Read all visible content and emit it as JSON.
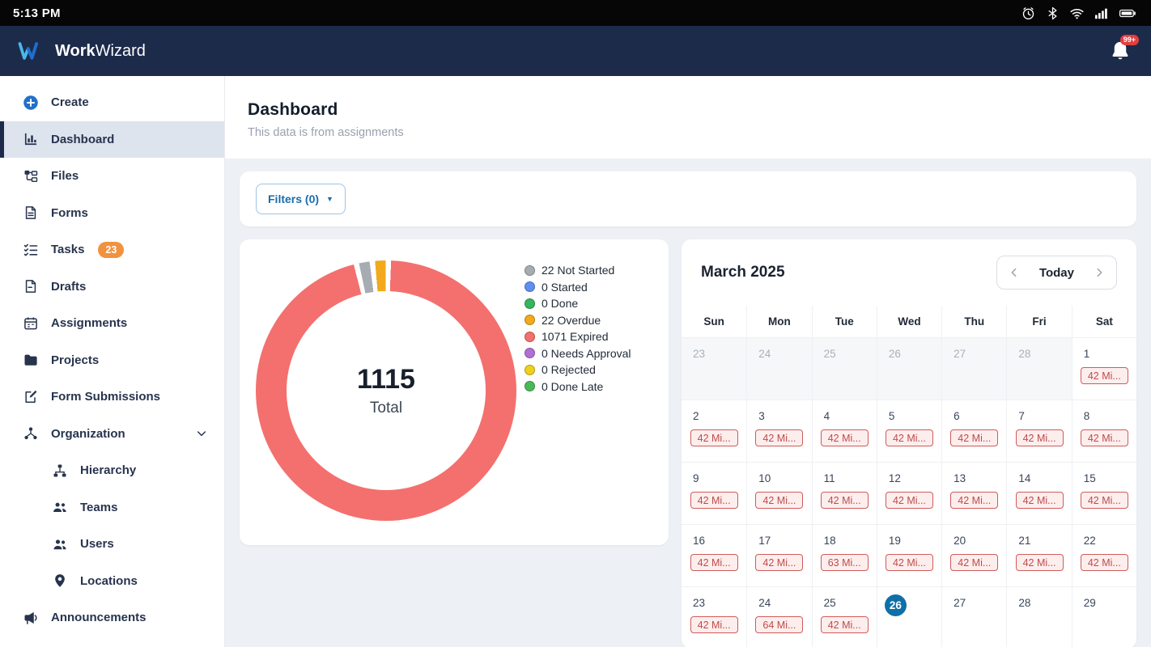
{
  "status_bar": {
    "time": "5:13 PM",
    "icons": [
      "alarm",
      "bluetooth",
      "wifi",
      "signal",
      "battery"
    ]
  },
  "header": {
    "brand_bold": "Work",
    "brand_light": "Wizard",
    "notification_badge": "99+"
  },
  "sidebar": {
    "items": [
      {
        "label": "Create",
        "icon": "plus-circle"
      },
      {
        "label": "Dashboard",
        "icon": "bar-chart",
        "active": true
      },
      {
        "label": "Files",
        "icon": "file-tree"
      },
      {
        "label": "Forms",
        "icon": "document"
      },
      {
        "label": "Tasks",
        "icon": "checklist",
        "badge": "23"
      },
      {
        "label": "Drafts",
        "icon": "draft"
      },
      {
        "label": "Assignments",
        "icon": "calendar"
      },
      {
        "label": "Projects",
        "icon": "folder"
      },
      {
        "label": "Form Submissions",
        "icon": "document-pen"
      },
      {
        "label": "Organization",
        "icon": "org-nodes",
        "expandable": true
      },
      {
        "label": "Hierarchy",
        "icon": "hierarchy",
        "indent": true
      },
      {
        "label": "Teams",
        "icon": "people-group",
        "indent": true
      },
      {
        "label": "Users",
        "icon": "people",
        "indent": true
      },
      {
        "label": "Locations",
        "icon": "map-pin",
        "indent": true
      },
      {
        "label": "Announcements",
        "icon": "megaphone"
      }
    ]
  },
  "main": {
    "title": "Dashboard",
    "subtitle": "This data is from assignments",
    "filters_label": "Filters (0)"
  },
  "chart_data": {
    "type": "pie",
    "title": "Assignment status donut",
    "total": 1115,
    "center_value": "1115",
    "center_label": "Total",
    "legend_position": "right",
    "segments": [
      {
        "label": "22 Not Started",
        "value": 22,
        "color": "#a7acb3"
      },
      {
        "label": "0 Started",
        "value": 0,
        "color": "#5f8ff0"
      },
      {
        "label": "0 Done",
        "value": 0,
        "color": "#35b55e"
      },
      {
        "label": "22 Overdue",
        "value": 22,
        "color": "#f2a91c"
      },
      {
        "label": "1071 Expired",
        "value": 1071,
        "color": "#f3706e"
      },
      {
        "label": "0 Needs Approval",
        "value": 0,
        "color": "#b06fd3"
      },
      {
        "label": "0 Rejected",
        "value": 0,
        "color": "#eed01f"
      },
      {
        "label": "0 Done Late",
        "value": 0,
        "color": "#49ba57"
      }
    ]
  },
  "calendar": {
    "month": "March 2025",
    "today_label": "Today",
    "day_headers": [
      "Sun",
      "Mon",
      "Tue",
      "Wed",
      "Thu",
      "Fri",
      "Sat"
    ],
    "weeks": [
      [
        {
          "day": "23",
          "muted": true
        },
        {
          "day": "24",
          "muted": true
        },
        {
          "day": "25",
          "muted": true
        },
        {
          "day": "26",
          "muted": true
        },
        {
          "day": "27",
          "muted": true
        },
        {
          "day": "28",
          "muted": true
        },
        {
          "day": "1",
          "badge": "42 Mi..."
        }
      ],
      [
        {
          "day": "2",
          "badge": "42 Mi..."
        },
        {
          "day": "3",
          "badge": "42 Mi..."
        },
        {
          "day": "4",
          "badge": "42 Mi..."
        },
        {
          "day": "5",
          "badge": "42 Mi..."
        },
        {
          "day": "6",
          "badge": "42 Mi..."
        },
        {
          "day": "7",
          "badge": "42 Mi..."
        },
        {
          "day": "8",
          "badge": "42 Mi..."
        }
      ],
      [
        {
          "day": "9",
          "badge": "42 Mi..."
        },
        {
          "day": "10",
          "badge": "42 Mi..."
        },
        {
          "day": "11",
          "badge": "42 Mi..."
        },
        {
          "day": "12",
          "badge": "42 Mi..."
        },
        {
          "day": "13",
          "badge": "42 Mi..."
        },
        {
          "day": "14",
          "badge": "42 Mi..."
        },
        {
          "day": "15",
          "badge": "42 Mi..."
        }
      ],
      [
        {
          "day": "16",
          "badge": "42 Mi..."
        },
        {
          "day": "17",
          "badge": "42 Mi..."
        },
        {
          "day": "18",
          "badge": "63 Mi..."
        },
        {
          "day": "19",
          "badge": "42 Mi..."
        },
        {
          "day": "20",
          "badge": "42 Mi..."
        },
        {
          "day": "21",
          "badge": "42 Mi..."
        },
        {
          "day": "22",
          "badge": "42 Mi..."
        }
      ],
      [
        {
          "day": "23",
          "badge": "42 Mi..."
        },
        {
          "day": "24",
          "badge": "64 Mi..."
        },
        {
          "day": "25",
          "badge": "42 Mi..."
        },
        {
          "day": "26",
          "today": true
        },
        {
          "day": "27"
        },
        {
          "day": "28"
        },
        {
          "day": "29"
        }
      ]
    ]
  }
}
